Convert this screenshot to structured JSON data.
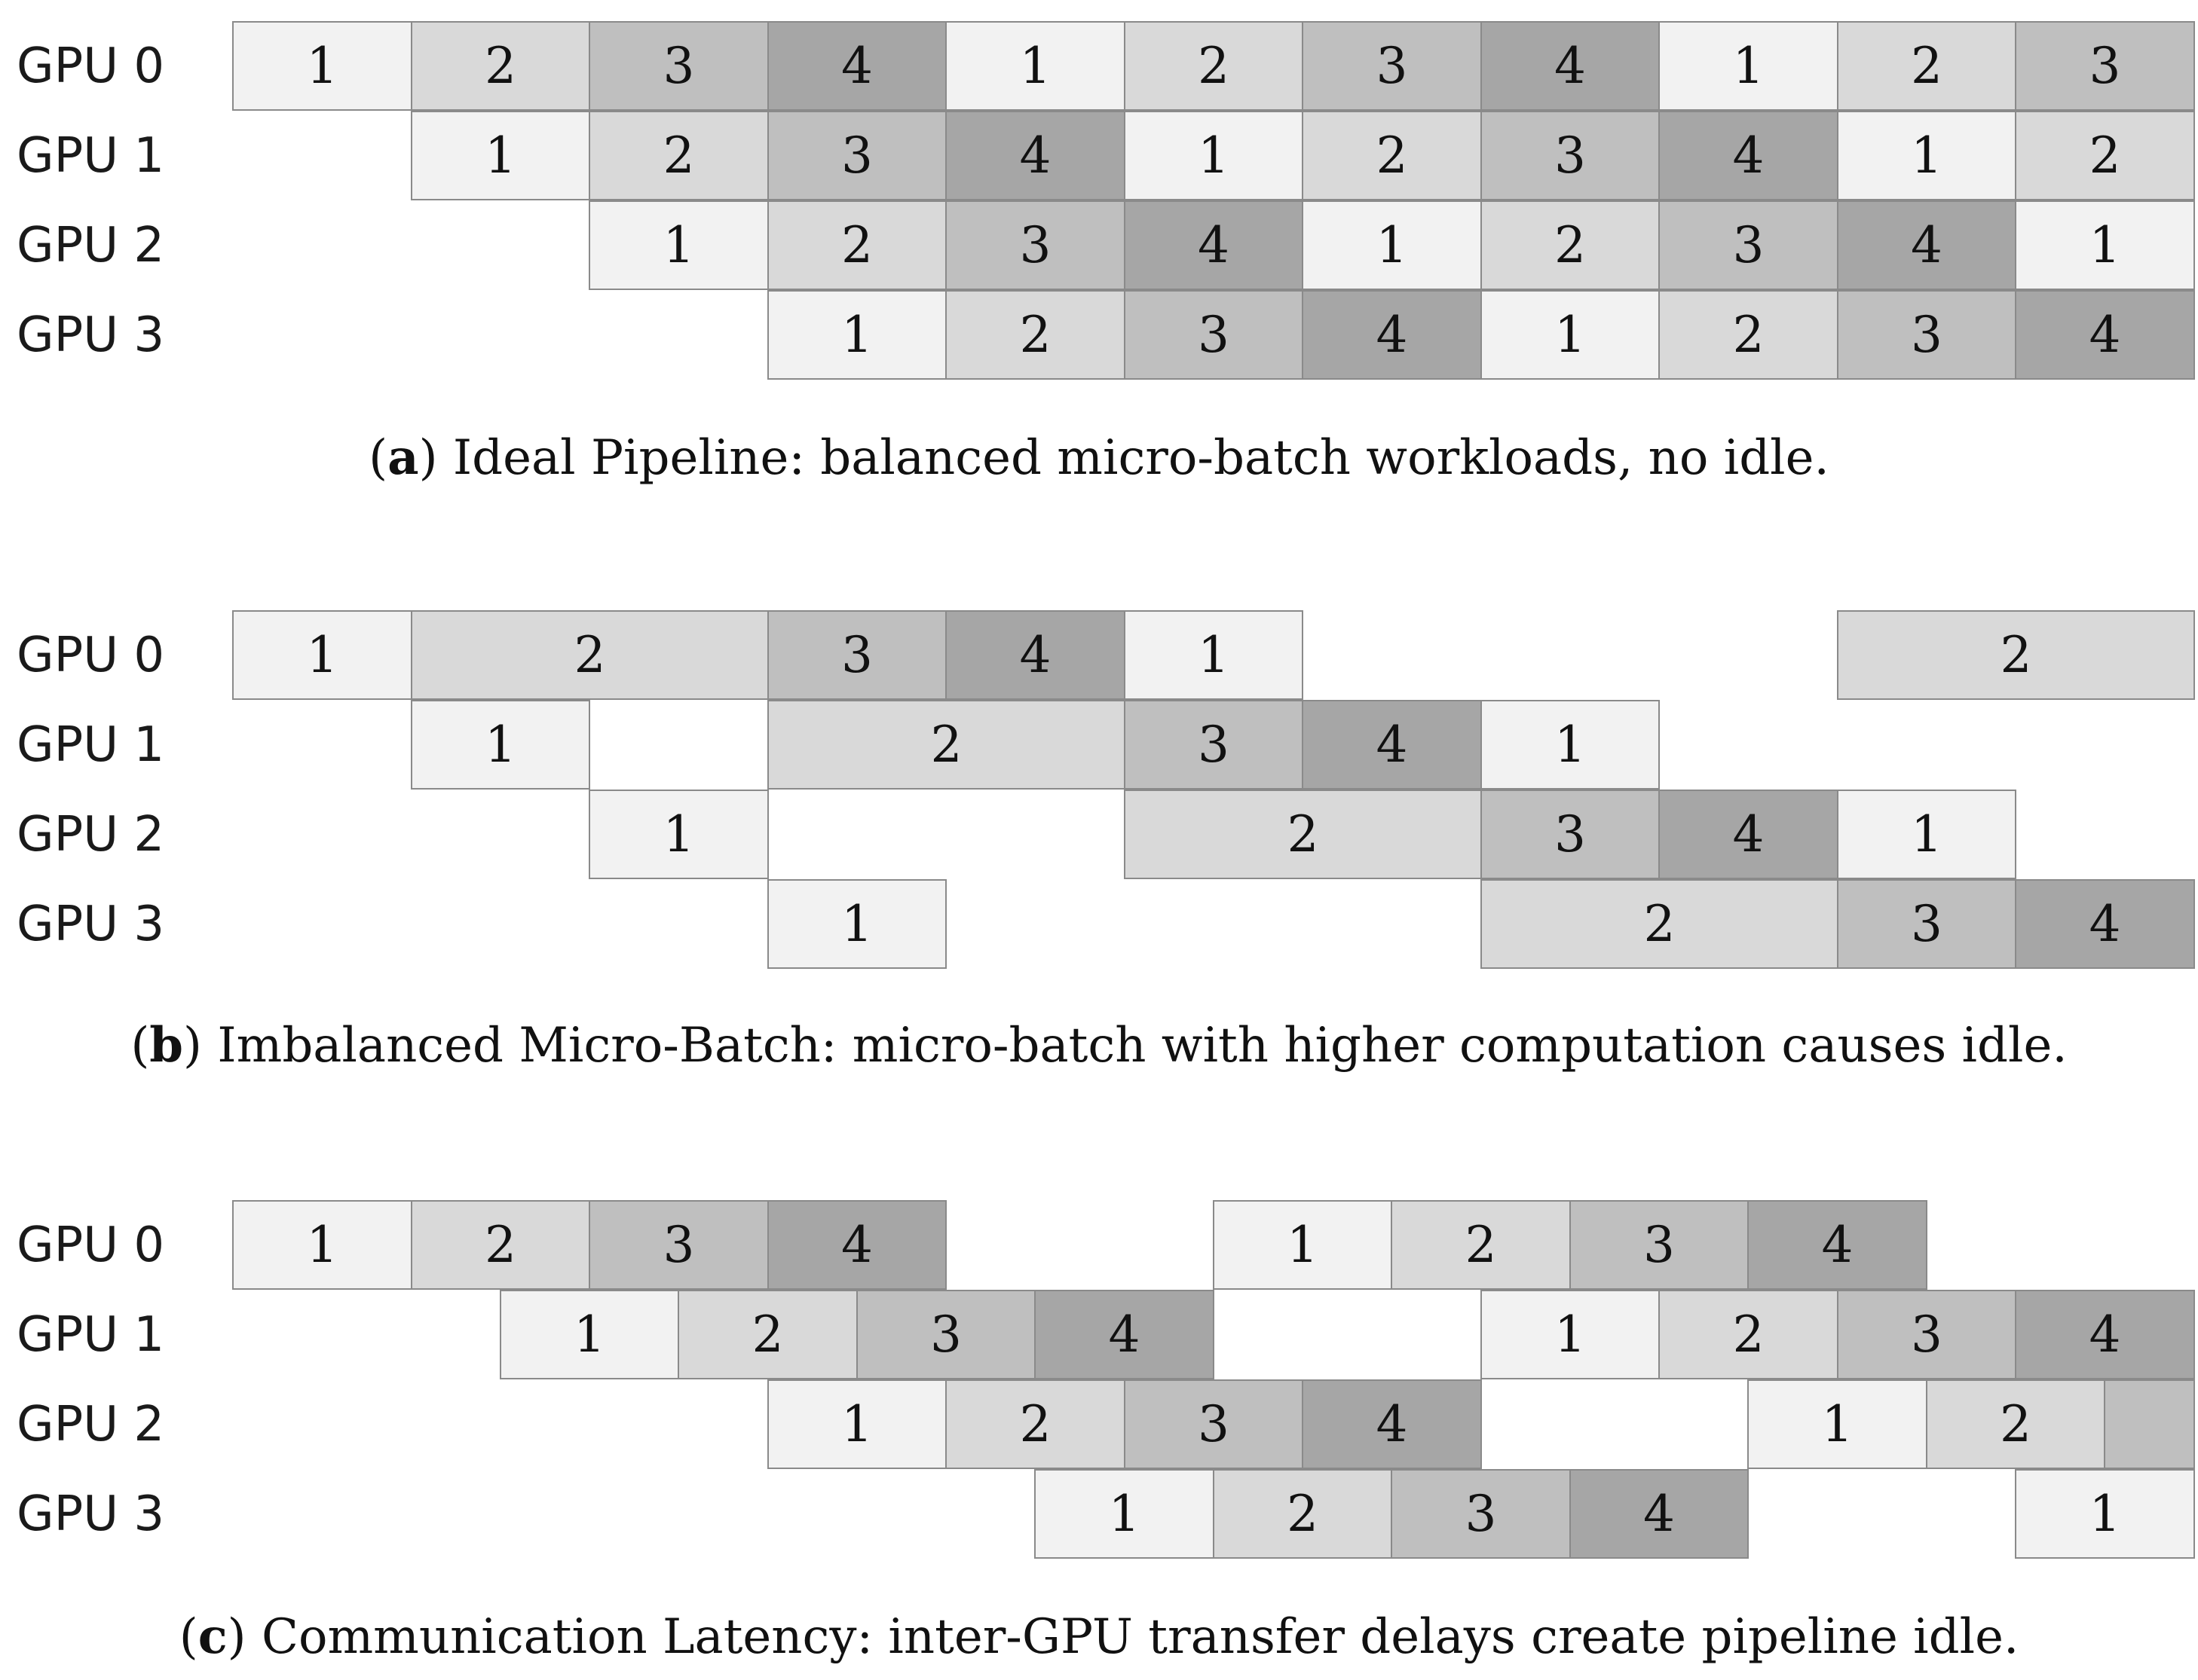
{
  "colors": {
    "1": "#f2f2f2",
    "2": "#d9d9d9",
    "3": "#bfbfbf",
    "4": "#a6a6a6",
    "blank": "#bfbfbf",
    "border": "#8a8a8a"
  },
  "diagrams": [
    {
      "letter": "a",
      "caption_text": ") Ideal Pipeline: balanced micro-batch workloads, no idle.",
      "rows": [
        {
          "label": "GPU 0",
          "blocks": [
            {
              "s": 0,
              "e": 1,
              "n": "1"
            },
            {
              "s": 1,
              "e": 2,
              "n": "2"
            },
            {
              "s": 2,
              "e": 3,
              "n": "3"
            },
            {
              "s": 3,
              "e": 4,
              "n": "4"
            },
            {
              "s": 4,
              "e": 5,
              "n": "1"
            },
            {
              "s": 5,
              "e": 6,
              "n": "2"
            },
            {
              "s": 6,
              "e": 7,
              "n": "3"
            },
            {
              "s": 7,
              "e": 8,
              "n": "4"
            },
            {
              "s": 8,
              "e": 9,
              "n": "1"
            },
            {
              "s": 9,
              "e": 10,
              "n": "2"
            },
            {
              "s": 10,
              "e": 11,
              "n": "3"
            }
          ]
        },
        {
          "label": "GPU 1",
          "blocks": [
            {
              "s": 1,
              "e": 2,
              "n": "1"
            },
            {
              "s": 2,
              "e": 3,
              "n": "2"
            },
            {
              "s": 3,
              "e": 4,
              "n": "3"
            },
            {
              "s": 4,
              "e": 5,
              "n": "4"
            },
            {
              "s": 5,
              "e": 6,
              "n": "1"
            },
            {
              "s": 6,
              "e": 7,
              "n": "2"
            },
            {
              "s": 7,
              "e": 8,
              "n": "3"
            },
            {
              "s": 8,
              "e": 9,
              "n": "4"
            },
            {
              "s": 9,
              "e": 10,
              "n": "1"
            },
            {
              "s": 10,
              "e": 11,
              "n": "2"
            }
          ]
        },
        {
          "label": "GPU 2",
          "blocks": [
            {
              "s": 2,
              "e": 3,
              "n": "1"
            },
            {
              "s": 3,
              "e": 4,
              "n": "2"
            },
            {
              "s": 4,
              "e": 5,
              "n": "3"
            },
            {
              "s": 5,
              "e": 6,
              "n": "4"
            },
            {
              "s": 6,
              "e": 7,
              "n": "1"
            },
            {
              "s": 7,
              "e": 8,
              "n": "2"
            },
            {
              "s": 8,
              "e": 9,
              "n": "3"
            },
            {
              "s": 9,
              "e": 10,
              "n": "4"
            },
            {
              "s": 10,
              "e": 11,
              "n": "1"
            }
          ]
        },
        {
          "label": "GPU 3",
          "blocks": [
            {
              "s": 3,
              "e": 4,
              "n": "1"
            },
            {
              "s": 4,
              "e": 5,
              "n": "2"
            },
            {
              "s": 5,
              "e": 6,
              "n": "3"
            },
            {
              "s": 6,
              "e": 7,
              "n": "4"
            },
            {
              "s": 7,
              "e": 8,
              "n": "1"
            },
            {
              "s": 8,
              "e": 9,
              "n": "2"
            },
            {
              "s": 9,
              "e": 10,
              "n": "3"
            },
            {
              "s": 10,
              "e": 11,
              "n": "4"
            }
          ]
        }
      ]
    },
    {
      "letter": "b",
      "caption_text": ") Imbalanced Micro-Batch: micro-batch with higher computation causes idle.",
      "rows": [
        {
          "label": "GPU 0",
          "blocks": [
            {
              "s": 0,
              "e": 1,
              "n": "1"
            },
            {
              "s": 1,
              "e": 3,
              "n": "2"
            },
            {
              "s": 3,
              "e": 4,
              "n": "3"
            },
            {
              "s": 4,
              "e": 5,
              "n": "4"
            },
            {
              "s": 5,
              "e": 6,
              "n": "1"
            },
            {
              "s": 9,
              "e": 11,
              "n": "2"
            }
          ]
        },
        {
          "label": "GPU 1",
          "blocks": [
            {
              "s": 1,
              "e": 2,
              "n": "1"
            },
            {
              "s": 3,
              "e": 5,
              "n": "2"
            },
            {
              "s": 5,
              "e": 6,
              "n": "3"
            },
            {
              "s": 6,
              "e": 7,
              "n": "4"
            },
            {
              "s": 7,
              "e": 8,
              "n": "1"
            }
          ]
        },
        {
          "label": "GPU 2",
          "blocks": [
            {
              "s": 2,
              "e": 3,
              "n": "1"
            },
            {
              "s": 5,
              "e": 7,
              "n": "2"
            },
            {
              "s": 7,
              "e": 8,
              "n": "3"
            },
            {
              "s": 8,
              "e": 9,
              "n": "4"
            },
            {
              "s": 9,
              "e": 10,
              "n": "1"
            }
          ]
        },
        {
          "label": "GPU 3",
          "blocks": [
            {
              "s": 3,
              "e": 4,
              "n": "1"
            },
            {
              "s": 7,
              "e": 9,
              "n": "2"
            },
            {
              "s": 9,
              "e": 10,
              "n": "3"
            },
            {
              "s": 10,
              "e": 11,
              "n": "4"
            }
          ]
        }
      ]
    },
    {
      "letter": "c",
      "caption_text": ") Communication Latency: inter-GPU transfer delays create pipeline idle.",
      "rows": [
        {
          "label": "GPU 0",
          "blocks": [
            {
              "s": 0,
              "e": 1,
              "n": "1"
            },
            {
              "s": 1,
              "e": 2,
              "n": "2"
            },
            {
              "s": 2,
              "e": 3,
              "n": "3"
            },
            {
              "s": 3,
              "e": 4,
              "n": "4"
            },
            {
              "s": 5.5,
              "e": 6.5,
              "n": "1"
            },
            {
              "s": 6.5,
              "e": 7.5,
              "n": "2"
            },
            {
              "s": 7.5,
              "e": 8.5,
              "n": "3"
            },
            {
              "s": 8.5,
              "e": 9.5,
              "n": "4"
            }
          ]
        },
        {
          "label": "GPU 1",
          "blocks": [
            {
              "s": 1.5,
              "e": 2.5,
              "n": "1"
            },
            {
              "s": 2.5,
              "e": 3.5,
              "n": "2"
            },
            {
              "s": 3.5,
              "e": 4.5,
              "n": "3"
            },
            {
              "s": 4.5,
              "e": 5.5,
              "n": "4"
            },
            {
              "s": 7,
              "e": 8,
              "n": "1"
            },
            {
              "s": 8,
              "e": 9,
              "n": "2"
            },
            {
              "s": 9,
              "e": 10,
              "n": "3"
            },
            {
              "s": 10,
              "e": 11,
              "n": "4"
            }
          ]
        },
        {
          "label": "GPU 2",
          "blocks": [
            {
              "s": 3,
              "e": 4,
              "n": "1"
            },
            {
              "s": 4,
              "e": 5,
              "n": "2"
            },
            {
              "s": 5,
              "e": 6,
              "n": "3"
            },
            {
              "s": 6,
              "e": 7,
              "n": "4"
            },
            {
              "s": 8.5,
              "e": 9.5,
              "n": "1"
            },
            {
              "s": 9.5,
              "e": 10.5,
              "n": "2"
            },
            {
              "s": 10.5,
              "e": 11,
              "n": ""
            }
          ]
        },
        {
          "label": "GPU 3",
          "blocks": [
            {
              "s": 4.5,
              "e": 5.5,
              "n": "1"
            },
            {
              "s": 5.5,
              "e": 6.5,
              "n": "2"
            },
            {
              "s": 6.5,
              "e": 7.5,
              "n": "3"
            },
            {
              "s": 7.5,
              "e": 8.5,
              "n": "4"
            },
            {
              "s": 10,
              "e": 11,
              "n": "1"
            }
          ]
        }
      ]
    }
  ]
}
